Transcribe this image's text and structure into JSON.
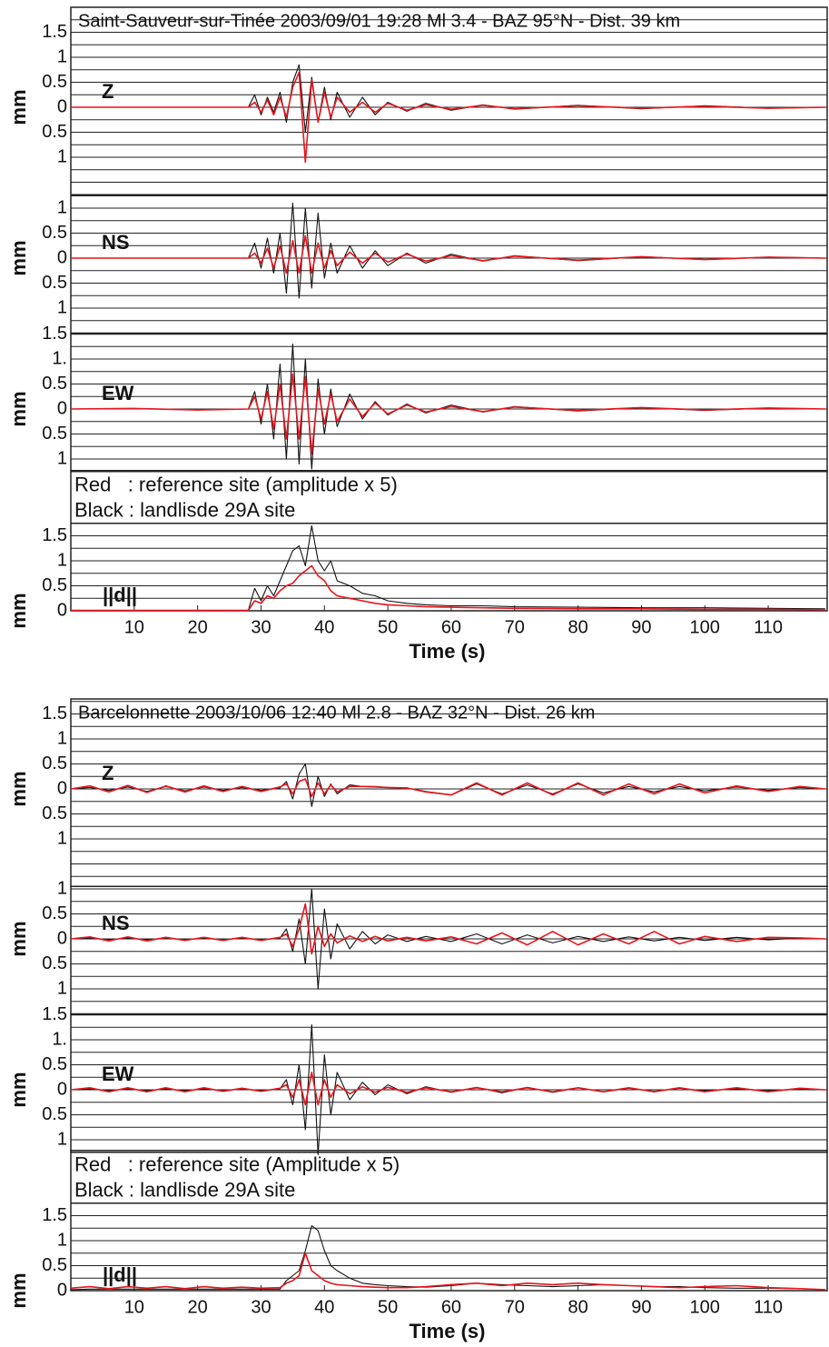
{
  "chart_data": [
    {
      "type": "line",
      "title": "Saint-Sauveur-sur-Tinée 2003/09/01 19:28 Ml 3.4 - BAZ 95°N - Dist. 39 km",
      "label": "Z",
      "ylabel": "mm",
      "x": [
        0,
        10,
        20,
        28,
        29,
        30,
        31,
        32,
        33,
        34,
        35,
        36,
        37,
        38,
        39,
        40,
        41,
        42,
        44,
        46,
        48,
        50,
        53,
        56,
        60,
        65,
        70,
        80,
        90,
        100,
        110,
        119
      ],
      "series": [
        {
          "color": "#111111",
          "values": [
            0,
            0,
            0,
            0,
            0.25,
            -0.15,
            0.2,
            -0.1,
            0.3,
            -0.3,
            0.5,
            0.85,
            -0.5,
            0.6,
            -0.3,
            0.4,
            -0.25,
            0.3,
            -0.2,
            0.2,
            -0.15,
            0.1,
            -0.08,
            0.08,
            -0.06,
            0.05,
            -0.04,
            0.04,
            -0.03,
            0.03,
            -0.02,
            0
          ]
        },
        {
          "color": "#e8141c",
          "values": [
            0,
            0,
            0,
            0,
            0.1,
            -0.1,
            0.15,
            -0.15,
            0.2,
            -0.2,
            0.4,
            0.7,
            -1.1,
            0.55,
            -0.3,
            0.3,
            -0.2,
            0.2,
            -0.1,
            0.1,
            -0.1,
            0.08,
            -0.06,
            0.05,
            -0.04,
            0.04,
            -0.03,
            0.03,
            -0.02,
            0.02,
            -0.02,
            0
          ]
        }
      ],
      "xlim": [
        0,
        119.3
      ],
      "ylim": [
        -1.75,
        2
      ],
      "grid_step": 0.25,
      "yticks": [
        1.5,
        1,
        0.5,
        0,
        {
          "value": -0.5,
          "label": "0.5"
        },
        {
          "value": -1,
          "label": "1"
        }
      ]
    },
    {
      "type": "line",
      "label": "NS",
      "ylabel": "mm",
      "x": [
        0,
        10,
        20,
        28,
        29,
        30,
        31,
        32,
        33,
        34,
        35,
        36,
        37,
        38,
        39,
        40,
        41,
        42,
        44,
        46,
        48,
        50,
        53,
        56,
        60,
        65,
        70,
        80,
        90,
        100,
        110,
        119
      ],
      "series": [
        {
          "color": "#111111",
          "values": [
            0,
            0,
            0,
            0,
            0.3,
            -0.2,
            0.4,
            -0.3,
            0.5,
            -0.7,
            1.1,
            -0.8,
            1.0,
            -0.6,
            0.9,
            -0.4,
            0.3,
            -0.3,
            0.25,
            -0.2,
            0.15,
            -0.15,
            0.1,
            -0.1,
            0.08,
            -0.06,
            0.05,
            -0.05,
            0.03,
            -0.03,
            0.02,
            0
          ]
        },
        {
          "color": "#e8141c",
          "values": [
            0,
            0,
            0,
            0,
            0.1,
            -0.1,
            0.2,
            -0.2,
            0.25,
            -0.3,
            0.35,
            -0.3,
            0.45,
            -0.3,
            0.3,
            -0.2,
            0.15,
            -0.15,
            0.12,
            -0.1,
            0.1,
            -0.08,
            0.08,
            -0.06,
            0.05,
            -0.05,
            0.04,
            -0.04,
            0.03,
            -0.03,
            0.02,
            0
          ]
        }
      ],
      "xlim": [
        0,
        119.3
      ],
      "ylim": [
        -1.5,
        1.25
      ],
      "grid_step": 0.25,
      "yticks": [
        1,
        0.5,
        0,
        {
          "value": -0.5,
          "label": "0.5"
        },
        {
          "value": -1,
          "label": "1"
        }
      ]
    },
    {
      "type": "line",
      "label": "EW",
      "ylabel": "mm",
      "x": [
        0,
        10,
        20,
        28,
        29,
        30,
        31,
        32,
        33,
        34,
        35,
        36,
        37,
        38,
        39,
        40,
        41,
        42,
        44,
        46,
        48,
        50,
        53,
        56,
        60,
        65,
        70,
        80,
        90,
        100,
        110,
        119
      ],
      "series": [
        {
          "color": "#111111",
          "values": [
            0,
            0.01,
            -0.02,
            0,
            0.35,
            -0.3,
            0.5,
            -0.6,
            0.9,
            -1.0,
            1.3,
            -1.1,
            1.0,
            -1.2,
            0.6,
            -0.5,
            0.4,
            -0.35,
            0.3,
            -0.2,
            0.15,
            -0.12,
            0.1,
            -0.08,
            0.08,
            -0.06,
            0.05,
            -0.04,
            0.03,
            -0.03,
            0.02,
            0
          ]
        },
        {
          "color": "#e8141c",
          "values": [
            0,
            0.01,
            -0.02,
            0,
            0.25,
            -0.2,
            0.35,
            -0.4,
            0.5,
            -0.6,
            0.7,
            -0.6,
            0.65,
            -0.9,
            0.4,
            -0.3,
            0.3,
            -0.25,
            0.2,
            -0.15,
            0.12,
            -0.1,
            0.08,
            -0.06,
            0.05,
            -0.05,
            0.04,
            -0.03,
            0.03,
            -0.02,
            0.02,
            0
          ]
        }
      ],
      "xlim": [
        0,
        119.3
      ],
      "ylim": [
        -1.25,
        1.5
      ],
      "grid_step": 0.25,
      "yticks": [
        1.5,
        {
          "value": 1,
          "label": "1."
        },
        0.5,
        0,
        {
          "value": -0.5,
          "label": "0.5"
        },
        {
          "value": -1,
          "label": "1"
        }
      ]
    },
    {
      "type": "line",
      "label": "||d||",
      "ylabel": "mm",
      "xlabel": "Time (s)",
      "notes": [
        "Red   : reference site (amplitude x 5)",
        "Black : landlisde 29A site"
      ],
      "x": [
        0,
        10,
        20,
        28,
        29,
        30,
        31,
        32,
        33,
        34,
        35,
        36,
        37,
        38,
        39,
        40,
        41,
        42,
        44,
        46,
        48,
        50,
        53,
        56,
        60,
        65,
        70,
        80,
        90,
        100,
        110,
        119
      ],
      "series": [
        {
          "color": "#111111",
          "values": [
            0,
            0.01,
            0.01,
            0.01,
            0.45,
            0.2,
            0.5,
            0.3,
            0.6,
            0.9,
            1.2,
            1.3,
            0.9,
            1.7,
            1.0,
            0.8,
            1.0,
            0.6,
            0.5,
            0.35,
            0.3,
            0.2,
            0.15,
            0.12,
            0.1,
            0.1,
            0.08,
            0.07,
            0.06,
            0.06,
            0.05,
            0.04
          ]
        },
        {
          "color": "#e8141c",
          "values": [
            0.01,
            0.01,
            0.01,
            0.01,
            0.2,
            0.15,
            0.3,
            0.25,
            0.4,
            0.5,
            0.55,
            0.7,
            0.8,
            0.9,
            0.7,
            0.6,
            0.4,
            0.3,
            0.25,
            0.2,
            0.15,
            0.12,
            0.1,
            0.08,
            0.07,
            0.06,
            0.05,
            0.04,
            0.04,
            0.03,
            0.03,
            0.02
          ]
        }
      ],
      "xlim": [
        0,
        119.3
      ],
      "ylim": [
        0,
        1.75
      ],
      "grid_step": 0.25,
      "yticks": [
        1.5,
        1,
        0.5,
        0
      ],
      "xticks": [
        10,
        20,
        30,
        40,
        50,
        60,
        70,
        80,
        90,
        100,
        110
      ]
    },
    {
      "type": "line",
      "title": "Barcelonnette 2003/10/06 12:40 Ml 2.8 - BAZ 32°N - Dist. 26 km",
      "label": "Z",
      "ylabel": "mm",
      "x": [
        0,
        3,
        6,
        9,
        12,
        15,
        18,
        21,
        24,
        27,
        30,
        33,
        34,
        35,
        36,
        37,
        38,
        39,
        40,
        41,
        42,
        44,
        46,
        48,
        50,
        53,
        56,
        60,
        64,
        68,
        72,
        76,
        80,
        84,
        88,
        92,
        96,
        100,
        105,
        110,
        115,
        119
      ],
      "series": [
        {
          "color": "#111111",
          "values": [
            0,
            0.03,
            -0.03,
            0.04,
            -0.05,
            0.05,
            -0.04,
            0.04,
            -0.03,
            0.03,
            -0.03,
            0.02,
            0.15,
            -0.2,
            0.3,
            0.5,
            -0.35,
            0.25,
            -0.15,
            0.1,
            -0.1,
            0.08,
            0.05,
            0.05,
            0.03,
            0.02,
            -0.05,
            -0.12,
            0.1,
            -0.1,
            0.08,
            -0.1,
            0.1,
            -0.08,
            0.05,
            -0.06,
            0.05,
            -0.04,
            0.04,
            -0.03,
            0.03,
            0
          ]
        },
        {
          "color": "#e8141c",
          "values": [
            0,
            0.06,
            -0.06,
            0.07,
            -0.07,
            0.06,
            -0.06,
            0.06,
            -0.05,
            0.05,
            -0.05,
            0.04,
            0.1,
            -0.1,
            0.15,
            0.2,
            -0.15,
            0.12,
            -0.1,
            0.08,
            -0.06,
            0.05,
            0.05,
            0.04,
            0.03,
            0.02,
            -0.06,
            -0.12,
            0.12,
            -0.12,
            0.12,
            -0.12,
            0.12,
            -0.12,
            0.1,
            -0.1,
            0.1,
            -0.08,
            0.06,
            -0.05,
            0.05,
            0
          ]
        }
      ],
      "xlim": [
        0,
        119.3
      ],
      "ylim": [
        -1.95,
        1.8
      ],
      "grid_step": 0.25,
      "yticks": [
        1.5,
        1,
        0.5,
        0,
        {
          "value": -0.5,
          "label": "0.5"
        },
        {
          "value": -1,
          "label": "1"
        }
      ]
    },
    {
      "type": "line",
      "label": "NS",
      "ylabel": "mm",
      "x": [
        0,
        3,
        6,
        9,
        12,
        15,
        18,
        21,
        24,
        27,
        30,
        33,
        34,
        35,
        36,
        37,
        38,
        39,
        40,
        41,
        42,
        44,
        46,
        48,
        50,
        53,
        56,
        60,
        64,
        68,
        72,
        76,
        80,
        84,
        88,
        92,
        96,
        100,
        105,
        110,
        115,
        119
      ],
      "series": [
        {
          "color": "#111111",
          "values": [
            0,
            0.02,
            -0.02,
            0.02,
            -0.02,
            0.02,
            -0.02,
            0.02,
            -0.02,
            0.02,
            -0.02,
            0.02,
            0.2,
            -0.25,
            0.4,
            -0.5,
            1.0,
            -1.0,
            0.6,
            -0.4,
            0.3,
            -0.2,
            0.15,
            -0.1,
            0.08,
            -0.05,
            0.05,
            -0.05,
            0.1,
            -0.1,
            0.08,
            -0.08,
            0.05,
            -0.05,
            0.04,
            -0.04,
            0.03,
            -0.03,
            0.03,
            -0.02,
            0.02,
            0
          ]
        },
        {
          "color": "#e8141c",
          "values": [
            0,
            0.04,
            -0.04,
            0.04,
            -0.04,
            0.03,
            -0.03,
            0.03,
            -0.03,
            0.03,
            -0.03,
            0.03,
            0.1,
            -0.15,
            0.2,
            0.7,
            -0.3,
            0.25,
            -0.15,
            0.1,
            -0.08,
            0.06,
            -0.05,
            0.05,
            -0.04,
            0.03,
            -0.04,
            0.04,
            -0.1,
            0.12,
            -0.12,
            0.15,
            -0.12,
            0.1,
            -0.1,
            0.15,
            -0.1,
            0.05,
            -0.05,
            0.03,
            0.02,
            0
          ]
        }
      ],
      "xlim": [
        0,
        119.3
      ],
      "ylim": [
        -1.5,
        1.05
      ],
      "grid_step": 0.25,
      "yticks": [
        1,
        0.5,
        0,
        {
          "value": -0.5,
          "label": "0.5"
        },
        {
          "value": -1,
          "label": "1"
        }
      ]
    },
    {
      "type": "line",
      "label": "EW",
      "ylabel": "mm",
      "x": [
        0,
        3,
        6,
        9,
        12,
        15,
        18,
        21,
        24,
        27,
        30,
        33,
        34,
        35,
        36,
        37,
        38,
        39,
        40,
        41,
        42,
        44,
        46,
        48,
        50,
        53,
        56,
        60,
        64,
        68,
        72,
        76,
        80,
        84,
        88,
        92,
        96,
        100,
        105,
        110,
        115,
        119
      ],
      "series": [
        {
          "color": "#111111",
          "values": [
            0,
            0.02,
            -0.02,
            0.02,
            -0.02,
            0.02,
            -0.02,
            0.02,
            -0.02,
            0.02,
            -0.02,
            0.02,
            0.2,
            -0.3,
            0.5,
            -0.8,
            1.3,
            -1.3,
            0.7,
            -0.5,
            0.35,
            -0.2,
            0.15,
            -0.1,
            0.1,
            -0.08,
            0.06,
            -0.05,
            0.05,
            -0.06,
            0.05,
            -0.05,
            0.04,
            -0.04,
            0.03,
            -0.03,
            0.03,
            -0.02,
            0.02,
            -0.02,
            0.01,
            0
          ]
        },
        {
          "color": "#e8141c",
          "values": [
            0,
            0.04,
            -0.04,
            0.04,
            -0.04,
            0.04,
            -0.04,
            0.04,
            -0.03,
            0.03,
            -0.03,
            0.03,
            0.1,
            -0.15,
            0.2,
            -0.3,
            0.35,
            -0.3,
            0.2,
            -0.15,
            0.1,
            -0.08,
            0.06,
            -0.05,
            0.05,
            -0.05,
            0.04,
            -0.04,
            0.04,
            -0.04,
            0.04,
            -0.04,
            0.04,
            -0.04,
            0.04,
            -0.04,
            0.04,
            -0.04,
            0.04,
            -0.04,
            0.03,
            0
          ]
        }
      ],
      "xlim": [
        0,
        119.3
      ],
      "ylim": [
        -1.25,
        1.5
      ],
      "grid_step": 0.25,
      "yticks": [
        1.5,
        {
          "value": 1,
          "label": "1."
        },
        0.5,
        0,
        {
          "value": -0.5,
          "label": "0.5"
        },
        {
          "value": -1,
          "label": "1"
        }
      ]
    },
    {
      "type": "line",
      "label": "||d||",
      "ylabel": "mm",
      "xlabel": "Time (s)",
      "notes": [
        "Red   : reference site (Amplitude x 5)",
        "Black : landlisde 29A site"
      ],
      "x": [
        0,
        3,
        6,
        9,
        12,
        15,
        18,
        21,
        24,
        27,
        30,
        33,
        34,
        35,
        36,
        37,
        38,
        39,
        40,
        41,
        42,
        44,
        46,
        48,
        50,
        53,
        56,
        60,
        64,
        68,
        72,
        76,
        80,
        84,
        88,
        92,
        96,
        100,
        105,
        110,
        115,
        119
      ],
      "series": [
        {
          "color": "#111111",
          "values": [
            0.02,
            0.03,
            0.03,
            0.03,
            0.03,
            0.03,
            0.03,
            0.03,
            0.03,
            0.03,
            0.03,
            0.03,
            0.2,
            0.3,
            0.4,
            0.8,
            1.3,
            1.2,
            0.8,
            0.5,
            0.4,
            0.25,
            0.15,
            0.12,
            0.1,
            0.08,
            0.07,
            0.1,
            0.15,
            0.12,
            0.1,
            0.08,
            0.1,
            0.12,
            0.1,
            0.08,
            0.08,
            0.06,
            0.05,
            0.05,
            0.04,
            0.02
          ]
        },
        {
          "color": "#e8141c",
          "values": [
            0.05,
            0.08,
            0.04,
            0.08,
            0.05,
            0.08,
            0.04,
            0.08,
            0.05,
            0.07,
            0.05,
            0.06,
            0.15,
            0.2,
            0.3,
            0.75,
            0.4,
            0.3,
            0.2,
            0.15,
            0.12,
            0.1,
            0.08,
            0.07,
            0.06,
            0.06,
            0.08,
            0.12,
            0.15,
            0.1,
            0.15,
            0.12,
            0.15,
            0.12,
            0.1,
            0.08,
            0.06,
            0.08,
            0.1,
            0.06,
            0.04,
            0.02
          ]
        }
      ],
      "xlim": [
        0,
        119.3
      ],
      "ylim": [
        0,
        1.75
      ],
      "grid_step": 0.25,
      "yticks": [
        1.5,
        1,
        0.5,
        0
      ],
      "xticks": [
        10,
        20,
        30,
        40,
        50,
        60,
        70,
        80,
        90,
        100,
        110
      ]
    }
  ]
}
